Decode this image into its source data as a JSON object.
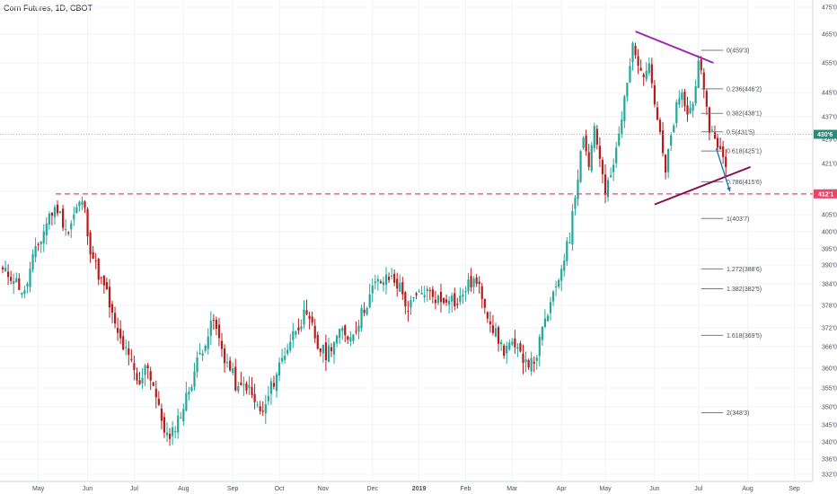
{
  "title": "Corn Futures, 1D, CBOT",
  "chart_data": {
    "type": "candlestick",
    "symbol": "Corn Futures",
    "interval": "1D",
    "exchange": "CBOT",
    "y_ticks": [
      "475'0",
      "465'0",
      "455'0",
      "445'0",
      "437'0",
      "429'0",
      "421'0",
      "413'0",
      "405'0",
      "400'0",
      "395'0",
      "390'0",
      "384'0",
      "378'0",
      "372'0",
      "366'0",
      "360'0",
      "355'0",
      "350'0",
      "345'0",
      "340'0",
      "336'0",
      "332'0"
    ],
    "x_ticks": [
      "May",
      "Jun",
      "Jul",
      "Aug",
      "Sep",
      "Oct",
      "Nov",
      "Dec",
      "2019",
      "Feb",
      "Mar",
      "Apr",
      "May",
      "Jun",
      "Jul",
      "Aug",
      "Sep"
    ],
    "current_price_label": "430'6",
    "support_label": "412'1",
    "fib_levels": [
      {
        "label": "0(459'3)"
      },
      {
        "label": "0.236(446'2)"
      },
      {
        "label": "0.382(438'1)"
      },
      {
        "label": "0.5(431'5)"
      },
      {
        "label": "0.618(425'1)"
      },
      {
        "label": "0.786(415'6)"
      },
      {
        "label": "1(403'7)"
      },
      {
        "label": "1.272(388'6)"
      },
      {
        "label": "1.382(382'5)"
      },
      {
        "label": "1.618(369'5)"
      },
      {
        "label": "2(348'3)"
      }
    ],
    "waypoints": [
      [
        0,
        388
      ],
      [
        4,
        386
      ],
      [
        8,
        381
      ],
      [
        11,
        392
      ],
      [
        14,
        398
      ],
      [
        17,
        405
      ],
      [
        20,
        407
      ],
      [
        22,
        403
      ],
      [
        24,
        400
      ],
      [
        27,
        407
      ],
      [
        29,
        410
      ],
      [
        30,
        406
      ],
      [
        32,
        395
      ],
      [
        35,
        387
      ],
      [
        38,
        381
      ],
      [
        41,
        372
      ],
      [
        44,
        366
      ],
      [
        47,
        361
      ],
      [
        50,
        355
      ],
      [
        52,
        362
      ],
      [
        55,
        356
      ],
      [
        57,
        349
      ],
      [
        59,
        344
      ],
      [
        61,
        340
      ],
      [
        63,
        345
      ],
      [
        66,
        350
      ],
      [
        69,
        357
      ],
      [
        72,
        364
      ],
      [
        75,
        370
      ],
      [
        77,
        374
      ],
      [
        79,
        368
      ],
      [
        81,
        363
      ],
      [
        84,
        358
      ],
      [
        86,
        354
      ],
      [
        89,
        356
      ],
      [
        92,
        351
      ],
      [
        95,
        348
      ],
      [
        98,
        355
      ],
      [
        101,
        361
      ],
      [
        104,
        366
      ],
      [
        107,
        372
      ],
      [
        110,
        375
      ],
      [
        113,
        372
      ],
      [
        115,
        366
      ],
      [
        118,
        364
      ],
      [
        121,
        368
      ],
      [
        124,
        371
      ],
      [
        127,
        369
      ],
      [
        130,
        374
      ],
      [
        133,
        379
      ],
      [
        136,
        384
      ],
      [
        139,
        385
      ],
      [
        142,
        386
      ],
      [
        145,
        383
      ],
      [
        148,
        377
      ],
      [
        151,
        380
      ],
      [
        154,
        382
      ],
      [
        157,
        381
      ],
      [
        160,
        379
      ],
      [
        163,
        381
      ],
      [
        166,
        378
      ],
      [
        169,
        383
      ],
      [
        172,
        385
      ],
      [
        175,
        381
      ],
      [
        178,
        374
      ],
      [
        181,
        368
      ],
      [
        183,
        365
      ],
      [
        185,
        367
      ],
      [
        188,
        364
      ],
      [
        191,
        363
      ],
      [
        193,
        361
      ],
      [
        195,
        364
      ],
      [
        197,
        371
      ],
      [
        199,
        376
      ],
      [
        201,
        380
      ],
      [
        203,
        386
      ],
      [
        205,
        393
      ],
      [
        207,
        398
      ],
      [
        208,
        407
      ],
      [
        210,
        418
      ],
      [
        212,
        431
      ],
      [
        214,
        420
      ],
      [
        216,
        434
      ],
      [
        218,
        422
      ],
      [
        220,
        412
      ],
      [
        222,
        417
      ],
      [
        224,
        425
      ],
      [
        226,
        436
      ],
      [
        228,
        450
      ],
      [
        230,
        460
      ],
      [
        232,
        456
      ],
      [
        234,
        452
      ],
      [
        236,
        455
      ],
      [
        238,
        442
      ],
      [
        240,
        430
      ],
      [
        242,
        418
      ],
      [
        244,
        430
      ],
      [
        246,
        440
      ],
      [
        248,
        444
      ],
      [
        250,
        438
      ],
      [
        252,
        441
      ],
      [
        254,
        457
      ],
      [
        256,
        444
      ],
      [
        258,
        433
      ],
      [
        260,
        430
      ],
      [
        262,
        425
      ],
      [
        264,
        420
      ]
    ]
  }
}
